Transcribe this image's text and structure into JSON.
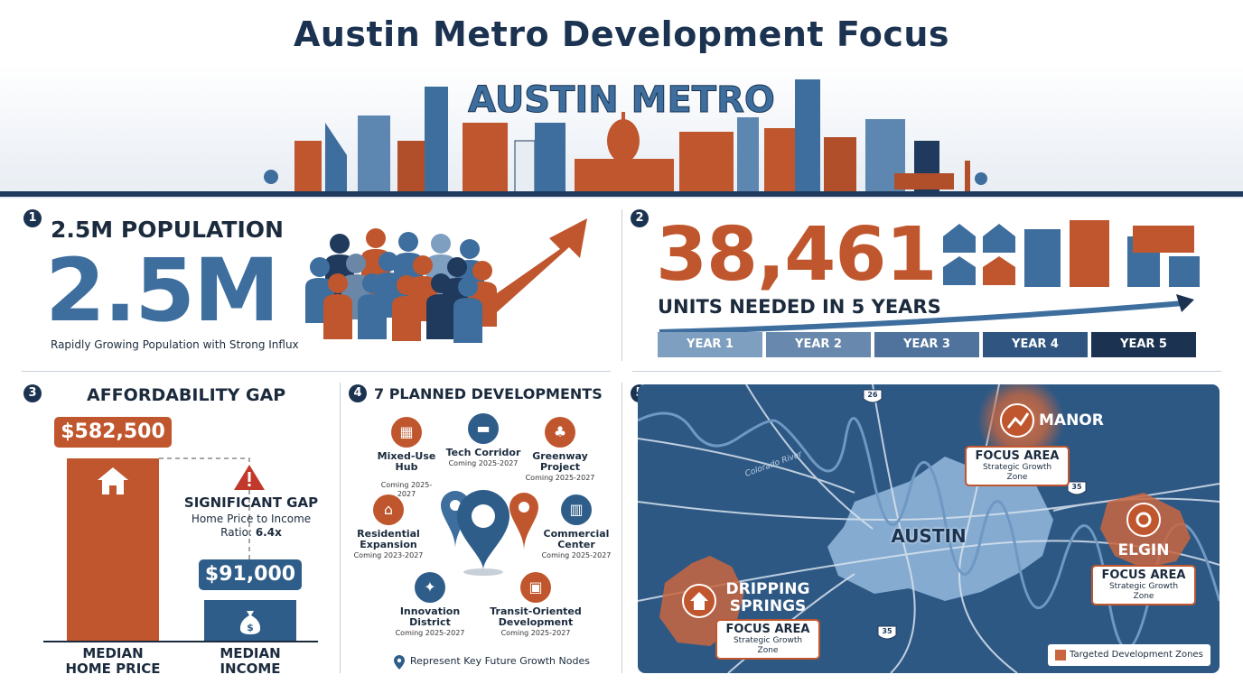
{
  "title": "Austin Metro Development Focus",
  "banner": {
    "text": "AUSTIN METRO"
  },
  "panel1": {
    "badge": "1",
    "heading": "2.5M POPULATION",
    "value": "2.5M",
    "subtitle": "Rapidly Growing Population with Strong Influx"
  },
  "panel2": {
    "badge": "2",
    "value": "38,461",
    "subtitle": "UNITS NEEDED IN 5 YEARS",
    "years": [
      "YEAR 1",
      "YEAR 2",
      "YEAR 3",
      "YEAR 4",
      "YEAR 5"
    ]
  },
  "panel3": {
    "badge": "3",
    "heading": "AFFORDABILITY GAP",
    "home_price": "$582,500",
    "income": "$91,000",
    "gap_title": "SIGNIFICANT GAP",
    "gap_line1": "Home Price to Income",
    "gap_line2_prefix": "Ratio: ",
    "gap_ratio": "6.4x",
    "home_label": "MEDIAN HOME PRICE",
    "income_label": "MEDIAN INCOME",
    "bar_ratio": 6.4
  },
  "panel4": {
    "badge": "4",
    "heading": "7 PLANNED DEVELOPMENTS",
    "developments": [
      {
        "name": "Mixed-Use Hub",
        "date": "Coming 2025-2027",
        "color": "#c0562d",
        "icon": "store-icon"
      },
      {
        "name": "Tech Corridor",
        "date": "Coming 2025-2027",
        "color": "#2f5d8a",
        "icon": "bench-icon"
      },
      {
        "name": "Greenway Project",
        "date": "Coming 2025-2027",
        "color": "#c0562d",
        "icon": "tree-icon"
      },
      {
        "name": "Residential Expansion",
        "date": "Coming 2023-2027",
        "color": "#c0562d",
        "icon": "house-icon"
      },
      {
        "name": "Commercial Center",
        "date": "Coming 2025-2027",
        "color": "#2f5d8a",
        "icon": "building-icon"
      },
      {
        "name": "Innovation District",
        "date": "Coming 2025-2027",
        "color": "#2f5d8a",
        "icon": "lightbulb-icon"
      },
      {
        "name": "Transit-Oriented Development",
        "date": "Coming 2025-2027",
        "color": "#c0562d",
        "icon": "train-icon"
      }
    ],
    "legend": "Represent Key Future Growth Nodes"
  },
  "panel5": {
    "badge": "5",
    "center_city": "AUSTIN",
    "river": "Colorado River",
    "highways": [
      "35",
      "35",
      "26"
    ],
    "focus_label": "FOCUS AREA",
    "focus_sub": "Strategic Growth Zone",
    "zones": [
      {
        "name": "MANOR",
        "icon": "chart-up-icon"
      },
      {
        "name": "ELGIN",
        "icon": "gear-icon"
      },
      {
        "name": "DRIPPING SPRINGS",
        "icon": "house-icon"
      }
    ],
    "legend": "Targeted Development Zones"
  },
  "colors": {
    "navy": "#1b3350",
    "blue": "#3d6e9e",
    "orange": "#c0562d"
  }
}
